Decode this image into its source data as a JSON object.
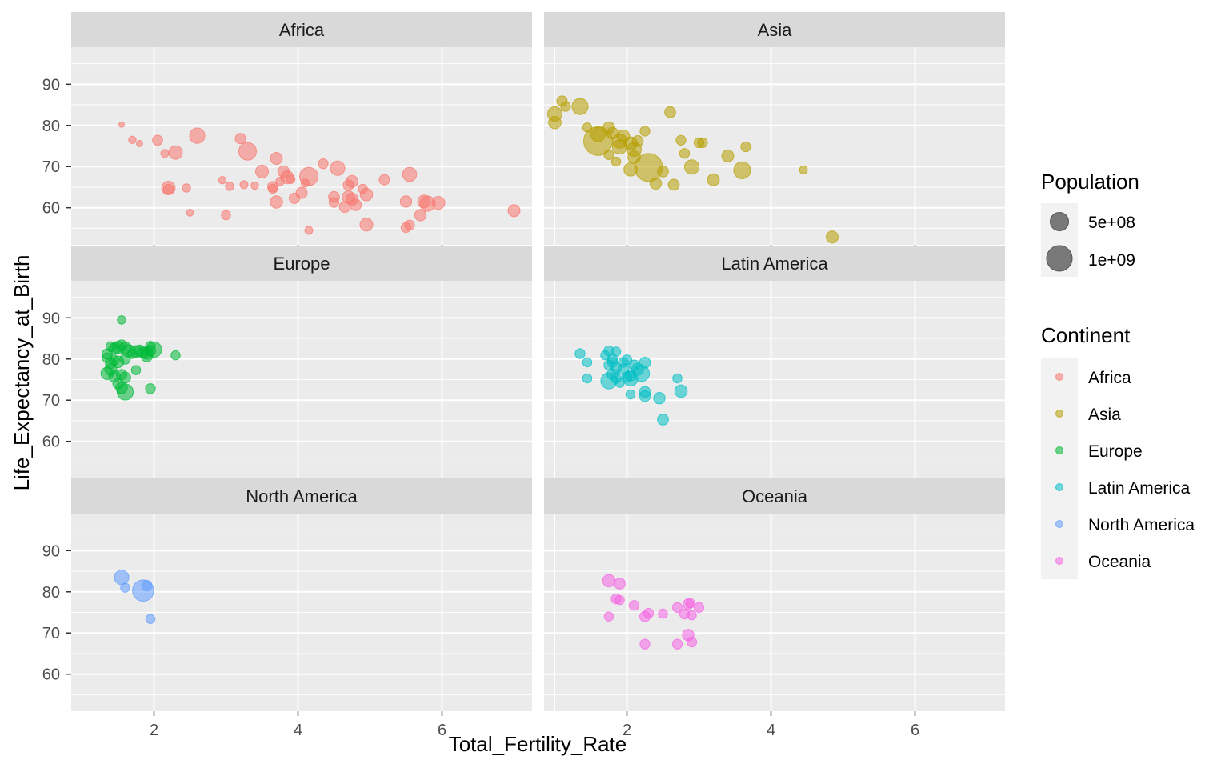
{
  "chart_data": {
    "type": "scatter",
    "facet_by": "Continent",
    "xlabel": "Total_Fertility_Rate",
    "ylabel": "Life_Expectancy_at_Birth",
    "xlim": [
      0.85,
      7.25
    ],
    "ylim": [
      51,
      99
    ],
    "x_ticks": [
      2,
      4,
      6
    ],
    "y_ticks": [
      60,
      70,
      80,
      90
    ],
    "grid": true,
    "legend_position": "right",
    "size_legend": {
      "title": "Population",
      "entries": [
        {
          "label": "5e+08",
          "value": 500000000
        },
        {
          "label": "1e+09",
          "value": 1000000000
        }
      ]
    },
    "color_legend": {
      "title": "Continent",
      "entries": [
        {
          "label": "Africa",
          "color": "#F8766D"
        },
        {
          "label": "Asia",
          "color": "#B79F00"
        },
        {
          "label": "Europe",
          "color": "#00BA38"
        },
        {
          "label": "Latin America",
          "color": "#00BFC4"
        },
        {
          "label": "North America",
          "color": "#619CFF"
        },
        {
          "label": "Oceania",
          "color": "#F564E3"
        }
      ]
    },
    "panels": [
      {
        "name": "Africa",
        "color": "#F8766D",
        "points": [
          [
            1.55,
            80.2,
            1
          ],
          [
            1.7,
            76.5,
            4
          ],
          [
            1.8,
            75.6,
            2
          ],
          [
            2.05,
            76.4,
            11
          ],
          [
            2.15,
            73.2,
            5
          ],
          [
            2.3,
            73.4,
            25
          ],
          [
            2.2,
            64.8,
            25
          ],
          [
            2.2,
            64.5,
            10
          ],
          [
            2.45,
            64.8,
            6
          ],
          [
            2.5,
            58.8,
            3
          ],
          [
            2.6,
            77.5,
            35
          ],
          [
            2.95,
            66.7,
            4
          ],
          [
            3.0,
            58.2,
            8
          ],
          [
            3.05,
            65.2,
            6
          ],
          [
            3.2,
            76.8,
            12
          ],
          [
            3.25,
            65.6,
            5
          ],
          [
            3.4,
            65.4,
            4
          ],
          [
            3.3,
            73.7,
            50
          ],
          [
            3.5,
            68.8,
            22
          ],
          [
            3.65,
            65.1,
            12
          ],
          [
            3.65,
            64.6,
            8
          ],
          [
            3.75,
            66.4,
            6
          ],
          [
            3.7,
            72.0,
            18
          ],
          [
            3.8,
            68.8,
            16
          ],
          [
            3.85,
            67.4,
            22
          ],
          [
            3.7,
            61.4,
            20
          ],
          [
            3.9,
            66.9,
            6
          ],
          [
            3.95,
            62.3,
            12
          ],
          [
            4.05,
            63.6,
            15
          ],
          [
            4.1,
            66.0,
            5
          ],
          [
            4.15,
            54.5,
            5
          ],
          [
            4.15,
            67.6,
            55
          ],
          [
            4.35,
            70.7,
            10
          ],
          [
            4.5,
            62.6,
            14
          ],
          [
            4.5,
            61.3,
            10
          ],
          [
            4.55,
            69.6,
            30
          ],
          [
            4.65,
            60.2,
            14
          ],
          [
            4.7,
            62.6,
            20
          ],
          [
            4.7,
            65.5,
            12
          ],
          [
            4.75,
            66.4,
            18
          ],
          [
            4.75,
            62.1,
            18
          ],
          [
            4.8,
            60.7,
            16
          ],
          [
            4.9,
            64.6,
            8
          ],
          [
            4.95,
            63.2,
            20
          ],
          [
            4.95,
            55.9,
            22
          ],
          [
            5.2,
            66.8,
            12
          ],
          [
            5.5,
            55.2,
            10
          ],
          [
            5.5,
            61.5,
            16
          ],
          [
            5.55,
            68.1,
            28
          ],
          [
            5.55,
            55.8,
            10
          ],
          [
            5.7,
            58.2,
            16
          ],
          [
            5.75,
            61.5,
            22
          ],
          [
            5.8,
            61.0,
            35
          ],
          [
            5.95,
            61.2,
            22
          ],
          [
            7.0,
            59.3,
            18
          ]
        ]
      },
      {
        "name": "Asia",
        "color": "#B79F00",
        "points": [
          [
            1.0,
            82.8,
            30
          ],
          [
            1.0,
            80.7,
            20
          ],
          [
            1.1,
            85.9,
            12
          ],
          [
            1.15,
            84.6,
            10
          ],
          [
            1.35,
            84.6,
            40
          ],
          [
            1.45,
            79.5,
            8
          ],
          [
            1.6,
            76.2,
            160
          ],
          [
            1.6,
            77.8,
            30
          ],
          [
            1.75,
            79.4,
            18
          ],
          [
            1.8,
            78.1,
            16
          ],
          [
            1.75,
            72.9,
            10
          ],
          [
            1.85,
            71.2,
            8
          ],
          [
            1.95,
            77.4,
            20
          ],
          [
            1.9,
            76.2,
            30
          ],
          [
            1.9,
            74.8,
            30
          ],
          [
            2.05,
            75.6,
            24
          ],
          [
            2.1,
            74.2,
            30
          ],
          [
            2.15,
            76.2,
            14
          ],
          [
            2.1,
            72.3,
            20
          ],
          [
            2.05,
            69.3,
            24
          ],
          [
            2.3,
            69.8,
            150
          ],
          [
            2.25,
            78.6,
            10
          ],
          [
            2.4,
            65.9,
            16
          ],
          [
            2.5,
            68.8,
            14
          ],
          [
            2.6,
            83.2,
            14
          ],
          [
            2.65,
            65.6,
            14
          ],
          [
            2.75,
            76.4,
            10
          ],
          [
            2.8,
            73.2,
            10
          ],
          [
            2.9,
            69.9,
            30
          ],
          [
            3.0,
            75.8,
            10
          ],
          [
            3.05,
            75.8,
            10
          ],
          [
            3.2,
            66.8,
            18
          ],
          [
            3.4,
            72.6,
            18
          ],
          [
            3.6,
            69.1,
            45
          ],
          [
            3.65,
            74.8,
            10
          ],
          [
            4.45,
            69.2,
            5
          ],
          [
            4.85,
            52.9,
            18
          ]
        ]
      },
      {
        "name": "Europe",
        "color": "#00BA38",
        "points": [
          [
            1.55,
            89.5,
            6
          ],
          [
            1.4,
            83.0,
            10
          ],
          [
            1.45,
            82.5,
            16
          ],
          [
            1.5,
            82.8,
            20
          ],
          [
            1.55,
            83.3,
            14
          ],
          [
            1.6,
            82.7,
            18
          ],
          [
            1.65,
            82.0,
            20
          ],
          [
            1.7,
            81.3,
            10
          ],
          [
            1.75,
            81.8,
            18
          ],
          [
            1.8,
            82.0,
            16
          ],
          [
            1.85,
            81.6,
            14
          ],
          [
            1.9,
            81.4,
            18
          ],
          [
            1.9,
            80.8,
            18
          ],
          [
            1.95,
            82.0,
            12
          ],
          [
            1.95,
            83.1,
            10
          ],
          [
            2.0,
            82.3,
            35
          ],
          [
            1.35,
            81.2,
            12
          ],
          [
            1.35,
            80.3,
            10
          ],
          [
            1.4,
            79.0,
            14
          ],
          [
            1.45,
            79.7,
            10
          ],
          [
            1.5,
            79.3,
            16
          ],
          [
            1.4,
            77.5,
            18
          ],
          [
            1.35,
            76.5,
            20
          ],
          [
            1.45,
            75.8,
            16
          ],
          [
            1.55,
            76.2,
            12
          ],
          [
            1.6,
            75.5,
            14
          ],
          [
            1.5,
            74.0,
            12
          ],
          [
            1.55,
            73.0,
            16
          ],
          [
            1.6,
            72.0,
            40
          ],
          [
            1.75,
            77.3,
            8
          ],
          [
            1.95,
            72.8,
            10
          ],
          [
            2.3,
            80.9,
            8
          ],
          [
            1.6,
            80.0,
            12
          ]
        ]
      },
      {
        "name": "Latin America",
        "color": "#00BFC4",
        "points": [
          [
            1.35,
            81.3,
            10
          ],
          [
            1.45,
            79.2,
            8
          ],
          [
            1.45,
            75.3,
            8
          ],
          [
            1.7,
            80.9,
            8
          ],
          [
            1.75,
            82.0,
            10
          ],
          [
            1.75,
            78.5,
            10
          ],
          [
            1.8,
            80.0,
            10
          ],
          [
            1.8,
            79.2,
            10
          ],
          [
            1.85,
            81.8,
            8
          ],
          [
            1.85,
            77.8,
            12
          ],
          [
            1.8,
            76.3,
            14
          ],
          [
            1.75,
            74.7,
            40
          ],
          [
            1.85,
            75.3,
            10
          ],
          [
            1.9,
            74.2,
            8
          ],
          [
            1.95,
            79.2,
            10
          ],
          [
            1.95,
            77.5,
            14
          ],
          [
            2.0,
            79.8,
            10
          ],
          [
            2.0,
            75.6,
            12
          ],
          [
            2.05,
            76.0,
            14
          ],
          [
            2.05,
            75.2,
            30
          ],
          [
            2.1,
            78.5,
            12
          ],
          [
            2.15,
            77.5,
            18
          ],
          [
            2.2,
            76.5,
            40
          ],
          [
            2.25,
            79.1,
            14
          ],
          [
            2.25,
            72.0,
            14
          ],
          [
            2.25,
            71.0,
            14
          ],
          [
            2.05,
            71.4,
            8
          ],
          [
            2.45,
            70.5,
            16
          ],
          [
            2.5,
            65.3,
            14
          ],
          [
            2.7,
            75.3,
            8
          ],
          [
            2.75,
            72.2,
            20
          ]
        ]
      },
      {
        "name": "North America",
        "color": "#619CFF",
        "points": [
          [
            1.55,
            83.5,
            30
          ],
          [
            1.6,
            81.0,
            8
          ],
          [
            1.85,
            80.3,
            80
          ],
          [
            1.9,
            81.5,
            12
          ],
          [
            1.95,
            73.4,
            8
          ]
        ]
      },
      {
        "name": "Oceania",
        "color": "#F564E3",
        "points": [
          [
            1.75,
            82.7,
            20
          ],
          [
            1.9,
            82.0,
            14
          ],
          [
            1.85,
            78.3,
            10
          ],
          [
            1.9,
            78.0,
            8
          ],
          [
            1.75,
            74.0,
            8
          ],
          [
            2.1,
            76.7,
            10
          ],
          [
            2.25,
            74.0,
            12
          ],
          [
            2.3,
            74.8,
            10
          ],
          [
            2.5,
            74.7,
            8
          ],
          [
            2.25,
            67.3,
            10
          ],
          [
            2.7,
            67.3,
            10
          ],
          [
            2.7,
            76.2,
            10
          ],
          [
            2.8,
            74.6,
            10
          ],
          [
            2.85,
            77.0,
            12
          ],
          [
            2.9,
            74.3,
            8
          ],
          [
            3.0,
            76.2,
            10
          ],
          [
            2.85,
            69.5,
            16
          ],
          [
            2.9,
            67.8,
            10
          ],
          [
            2.88,
            77.2,
            8
          ]
        ]
      }
    ]
  }
}
